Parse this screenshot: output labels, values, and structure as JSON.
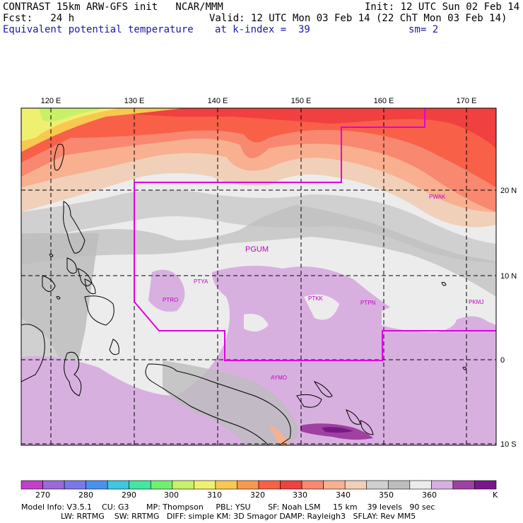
{
  "header": {
    "line1_left": "CONTRAST 15km ARW-GFS init   NCAR/MMM",
    "line1_right": "Init: 12 UTC Sun 02 Feb 14",
    "line2_left": "Fcst:   24 h",
    "line2_right": "Valid: 12 UTC Mon 03 Feb 14 (22 ChT Mon 03 Feb 14)",
    "line3_left": "Equivalent potential temperature",
    "line3_mid": "at k-index =  39",
    "line3_right": "sm= 2"
  },
  "map": {
    "lon_labels": [
      "120 E",
      "130 E",
      "140 E",
      "150 E",
      "160 E",
      "170 E"
    ],
    "lat_labels": [
      "20 N",
      "10 N",
      "0",
      "10 S"
    ],
    "stations": [
      {
        "id": "PGUM"
      },
      {
        "id": "PTYA"
      },
      {
        "id": "PTRO"
      },
      {
        "id": "PTKK"
      },
      {
        "id": "PTPN"
      },
      {
        "id": "PWAK"
      },
      {
        "id": "PKMJ"
      },
      {
        "id": "AYMO"
      }
    ],
    "colors": {
      "boundary": "#e000e0",
      "grid": "#000000",
      "coast": "#000000"
    }
  },
  "colorbar": {
    "labels": [
      "270",
      "280",
      "290",
      "300",
      "310",
      "320",
      "330",
      "340",
      "350",
      "360"
    ],
    "unit": "K",
    "colors": [
      "#c040c8",
      "#9a6ad8",
      "#7878e8",
      "#4a90f0",
      "#3cc8e0",
      "#40e8a0",
      "#70f070",
      "#c8f068",
      "#f0f070",
      "#f8c850",
      "#f89850",
      "#f86048",
      "#f04040",
      "#f88870",
      "#f8b090",
      "#f0d0b8",
      "#d0d0d0",
      "#bdbdbd",
      "#ececec",
      "#d8b0e0",
      "#a040a0",
      "#781888"
    ]
  },
  "footer": {
    "line1": "Model Info: V3.5.1    CU: G3       MP: Thompson     PBL: YSU       SF: Noah LSM     15 km    39 levels   90 sec",
    "line2": "                LW: RRTMG    SW: RRTMG   DIFF: simple KM: 3D Smagor DAMP: Rayleigh3   SFLAY: Rev MM5"
  }
}
